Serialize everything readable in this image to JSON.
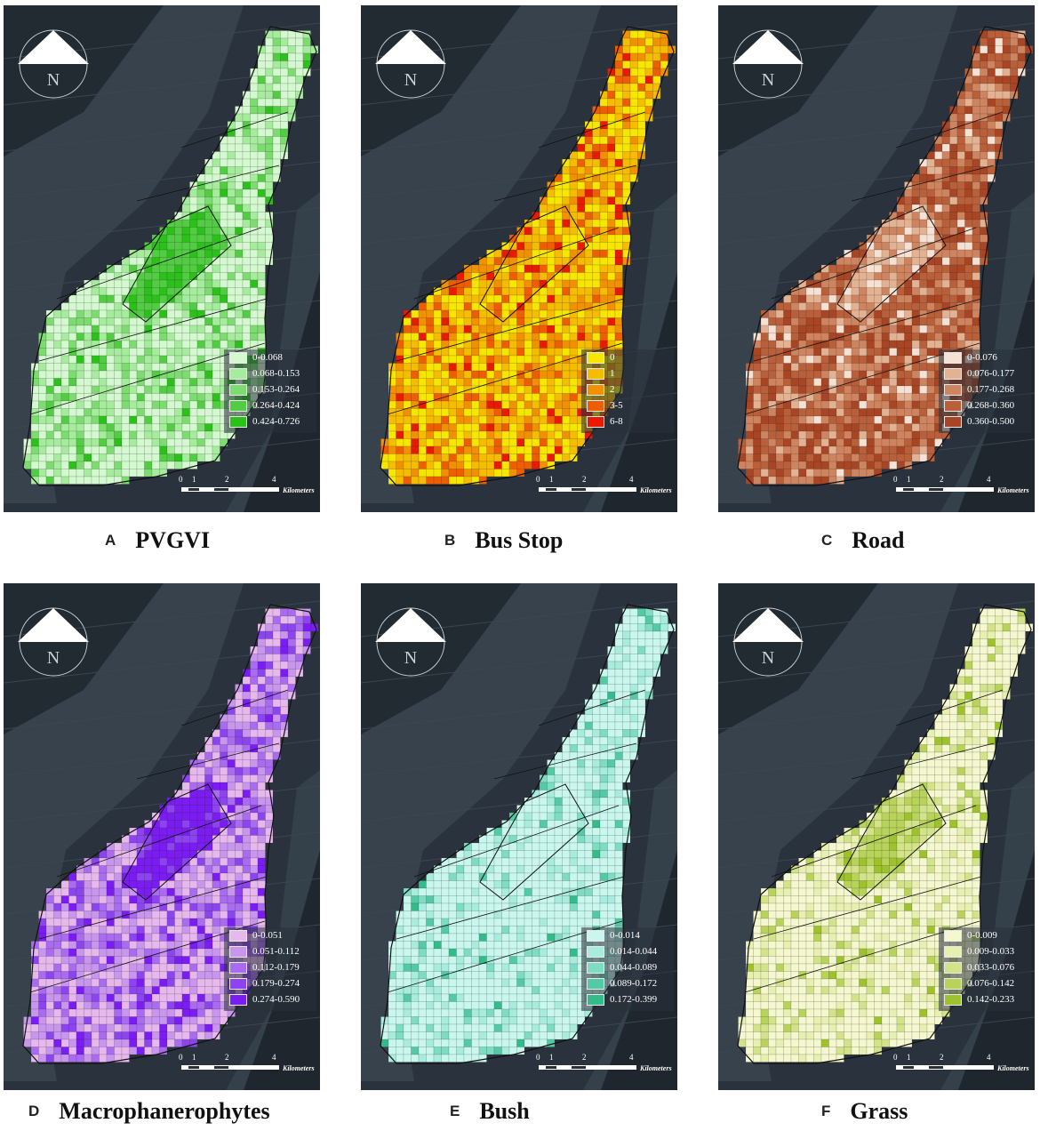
{
  "north_arrow_letter": "N",
  "scale": {
    "ticks": [
      "0",
      "1",
      "2",
      "4"
    ],
    "unit": "Kilometers"
  },
  "panels": [
    {
      "letter": "A",
      "title": "PVGVI",
      "colors": [
        "#d4f8cf",
        "#a6ec9d",
        "#7ddc70",
        "#52cc43",
        "#2cc01b"
      ],
      "weights": [
        0.48,
        0.28,
        0.13,
        0.07,
        0.04
      ],
      "legend": [
        "0-0.068",
        "0.068-0.153",
        "0.153-0.264",
        "0.264-0.424",
        "0.424-0.726"
      ]
    },
    {
      "letter": "B",
      "title": "Bus Stop",
      "colors": [
        "#f7e600",
        "#f5bc00",
        "#f29100",
        "#ee5d00",
        "#e81a00"
      ],
      "weights": [
        0.34,
        0.28,
        0.2,
        0.12,
        0.06
      ],
      "legend": [
        "0",
        "1",
        "2",
        "3-5",
        "6-8"
      ]
    },
    {
      "letter": "C",
      "title": "Road",
      "colors": [
        "#f6e2d4",
        "#e3b293",
        "#cf8460",
        "#b9603a",
        "#a74524"
      ],
      "weights": [
        0.06,
        0.12,
        0.24,
        0.3,
        0.28
      ],
      "legend": [
        "0-0.076",
        "0.076-0.177",
        "0.177-0.268",
        "0.268-0.360",
        "0.360-0.500"
      ]
    },
    {
      "letter": "D",
      "title": "Macrophanerophytes",
      "colors": [
        "#e6b8ec",
        "#c996ee",
        "#a96bef",
        "#8c44ee",
        "#7a1cf2"
      ],
      "weights": [
        0.36,
        0.26,
        0.18,
        0.12,
        0.08
      ],
      "legend": [
        "0-0.051",
        "0.051-0.112",
        "0.112-0.179",
        "0.179-0.274",
        "0.274-0.590"
      ]
    },
    {
      "letter": "E",
      "title": "Bush",
      "colors": [
        "#c9f7ee",
        "#a7ecdc",
        "#7ddcc2",
        "#54caa4",
        "#33bb8a"
      ],
      "weights": [
        0.72,
        0.15,
        0.07,
        0.04,
        0.02
      ],
      "legend": [
        "0-0.014",
        "0.014-0.044",
        "0.044-0.089",
        "0.089-0.172",
        "0.172-0.399"
      ]
    },
    {
      "letter": "F",
      "title": "Grass",
      "colors": [
        "#f5f8cf",
        "#e7f0b0",
        "#d2e38a",
        "#b8d35a",
        "#9dc22c"
      ],
      "weights": [
        0.66,
        0.18,
        0.09,
        0.05,
        0.02
      ],
      "legend": [
        "0-0.009",
        "0.009-0.033",
        "0.033-0.076",
        "0.076-0.142",
        "0.142-0.233"
      ]
    }
  ]
}
